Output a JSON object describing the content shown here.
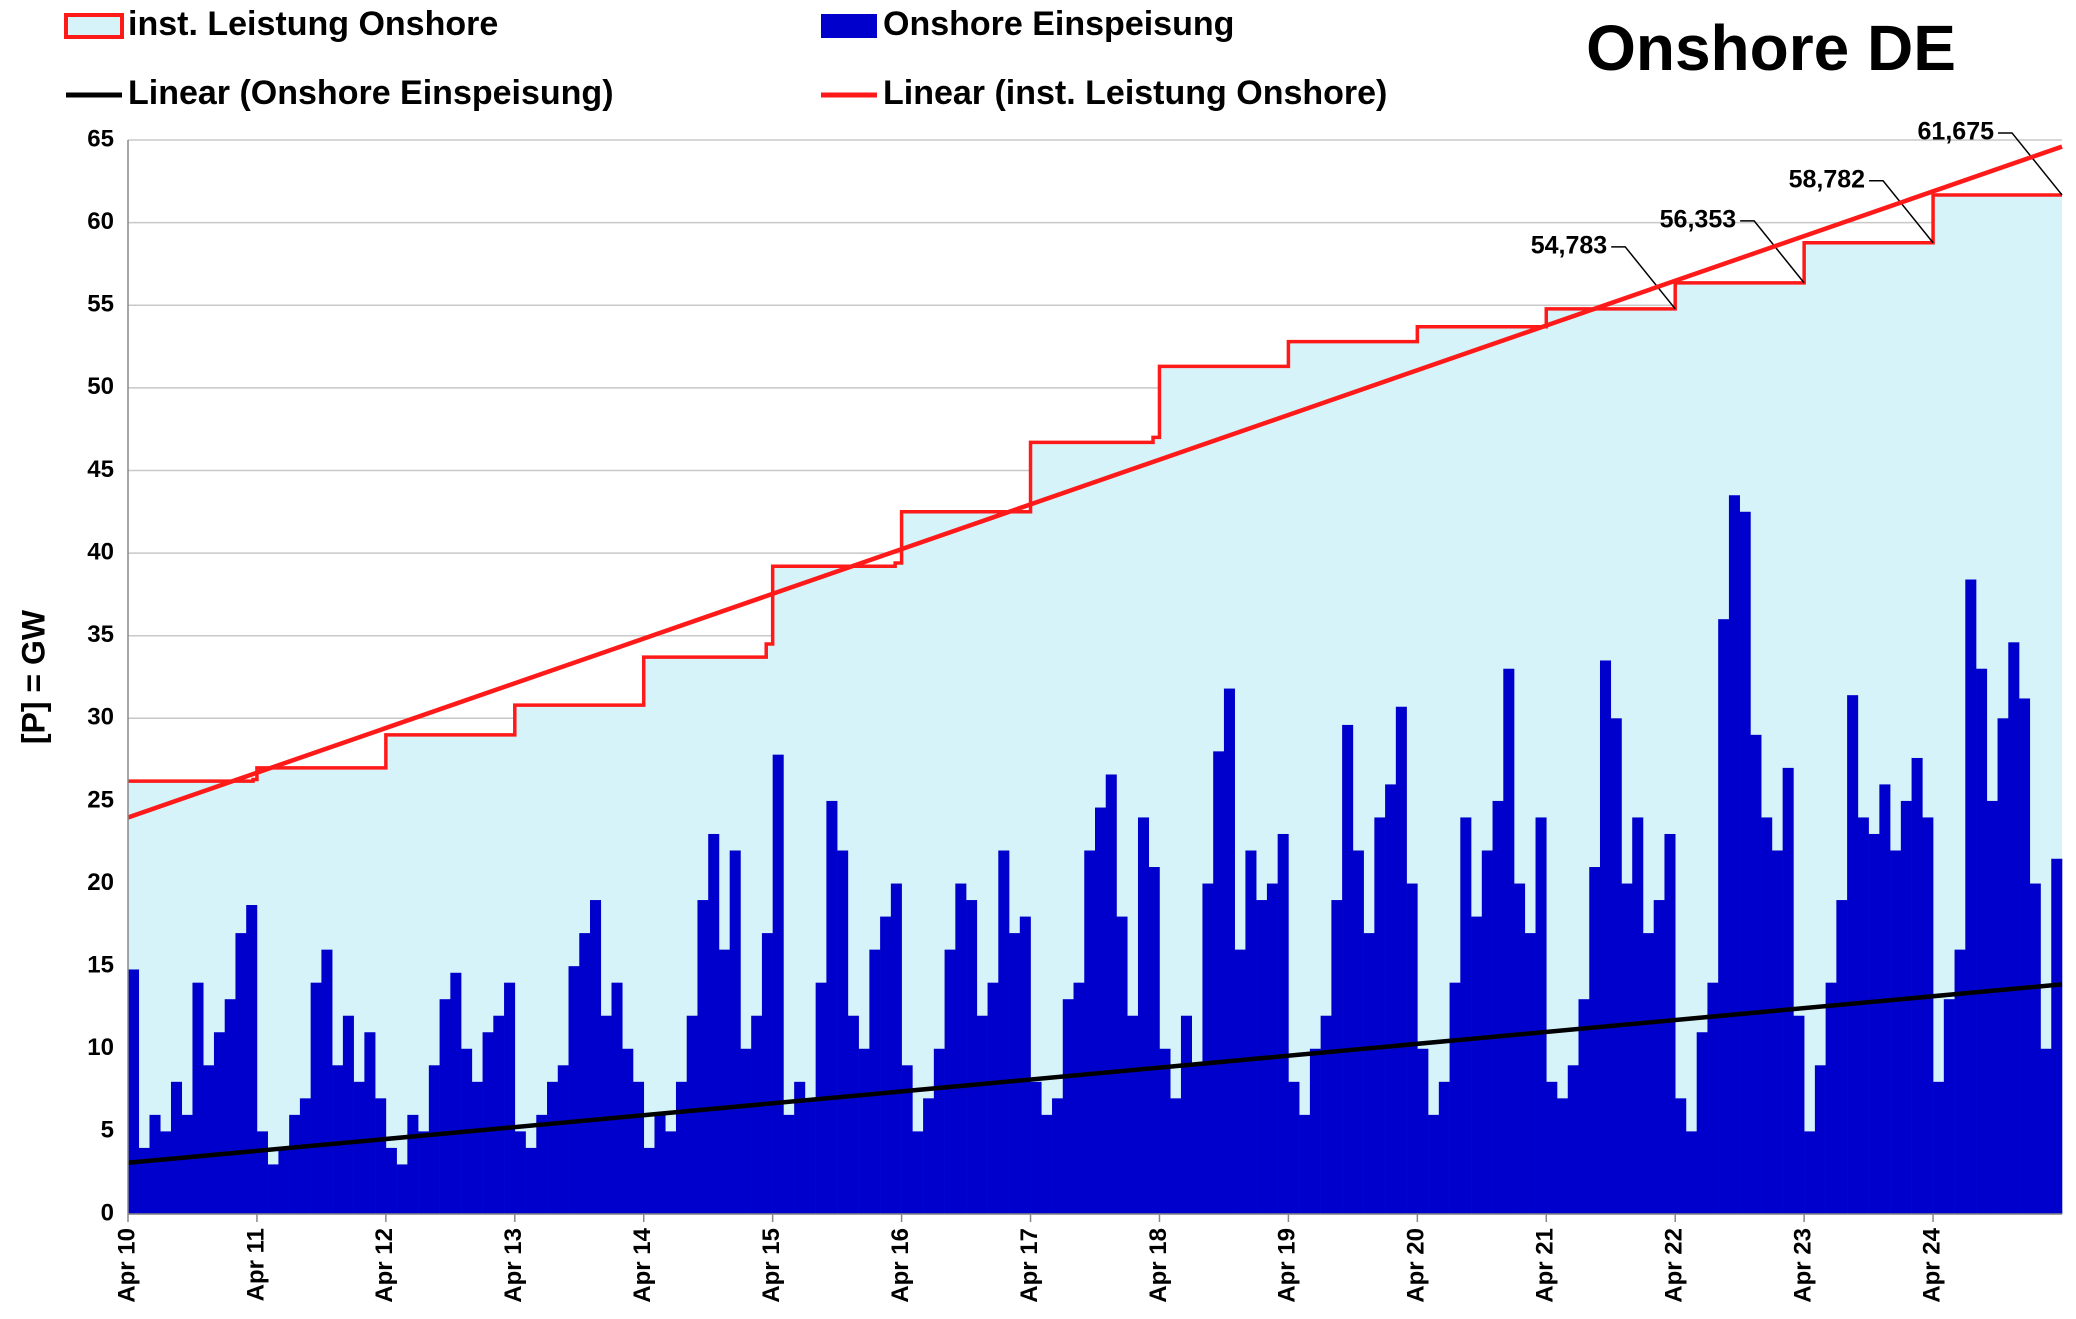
{
  "chart_data": {
    "type": "mixed",
    "title": "Onshore  DE",
    "ylabel": "[P] = GW",
    "xlim": [
      0,
      15
    ],
    "xticks": [
      {
        "value": 0,
        "label": "Apr 10"
      },
      {
        "value": 1,
        "label": "Apr 11"
      },
      {
        "value": 2,
        "label": "Apr 12"
      },
      {
        "value": 3,
        "label": "Apr 13"
      },
      {
        "value": 4,
        "label": "Apr 14"
      },
      {
        "value": 5,
        "label": "Apr 15"
      },
      {
        "value": 6,
        "label": "Apr 16"
      },
      {
        "value": 7,
        "label": "Apr 17"
      },
      {
        "value": 8,
        "label": "Apr 18"
      },
      {
        "value": 9,
        "label": "Apr 19"
      },
      {
        "value": 10,
        "label": "Apr 20"
      },
      {
        "value": 11,
        "label": "Apr 21"
      },
      {
        "value": 12,
        "label": "Apr 22"
      },
      {
        "value": 13,
        "label": "Apr 23"
      },
      {
        "value": 14,
        "label": "Apr 24"
      }
    ],
    "ylim": [
      0,
      65
    ],
    "yticks": [
      0,
      5,
      10,
      15,
      20,
      25,
      30,
      35,
      40,
      45,
      50,
      55,
      60,
      65
    ],
    "grid": true,
    "series": [
      {
        "name": "inst. Leistung Onshore",
        "kind": "step-area",
        "color": "#ff1a1a",
        "fill": "#d6f3fa",
        "x": [
          0,
          0.97,
          1,
          2,
          3,
          4,
          4.95,
          5,
          5.95,
          6,
          7,
          7.95,
          8,
          9,
          10,
          11,
          12,
          13,
          14,
          15
        ],
        "values": [
          26.2,
          26.3,
          27.0,
          29.0,
          30.8,
          33.7,
          34.5,
          39.2,
          39.4,
          42.5,
          46.7,
          47.0,
          51.3,
          52.8,
          53.7,
          54.783,
          56.353,
          58.782,
          61.675,
          61.675
        ],
        "value_labels": [
          null,
          null,
          null,
          null,
          null,
          null,
          null,
          null,
          null,
          null,
          null,
          null,
          null,
          null,
          null,
          "54,783",
          "56,353",
          "58,782",
          null,
          "61,675"
        ]
      },
      {
        "name": "Onshore Einspeisung",
        "kind": "bar",
        "color": "#0000cc",
        "x0": 0,
        "step": 0.0833333,
        "values": [
          14.8,
          4,
          6,
          5,
          8,
          6,
          14,
          9,
          11,
          13,
          17,
          18.7,
          5,
          3,
          4,
          6,
          7,
          14,
          16,
          9,
          12,
          8,
          11,
          7,
          4,
          3,
          6,
          5,
          9,
          13,
          14.6,
          10,
          8,
          11,
          12,
          14,
          5,
          4,
          6,
          8,
          9,
          15,
          17,
          19,
          12,
          14,
          10,
          8,
          4,
          6,
          5,
          8,
          12,
          19,
          23,
          16,
          22,
          10,
          12,
          17,
          27.8,
          6,
          8,
          7,
          14,
          25,
          22,
          12,
          10,
          16,
          18,
          20,
          9,
          5,
          7,
          10,
          16,
          20,
          19,
          12,
          14,
          22,
          17,
          18,
          8,
          6,
          7,
          13,
          14,
          22,
          24.6,
          26.6,
          18,
          12,
          24,
          21,
          10,
          7,
          12,
          9,
          20,
          28,
          31.8,
          16,
          22,
          19,
          20,
          23,
          8,
          6,
          10,
          12,
          19,
          29.6,
          22,
          17,
          24,
          26,
          30.7,
          20,
          10,
          6,
          8,
          14,
          24,
          18,
          22,
          25,
          33,
          20,
          17,
          24,
          8,
          7,
          9,
          13,
          21,
          33.5,
          30,
          20,
          24,
          17,
          19,
          23,
          7,
          5,
          11,
          14,
          36,
          43.5,
          42.5,
          29,
          24,
          22,
          27,
          12,
          5,
          9,
          14,
          19,
          31.4,
          24,
          23,
          26,
          22,
          25,
          27.6,
          24,
          8,
          13,
          16,
          38.4,
          33,
          25,
          30,
          34.6,
          31.2,
          20,
          10,
          21.5
        ]
      },
      {
        "name": "Linear (Onshore Einspeisung)",
        "kind": "line",
        "color": "#000000",
        "x": [
          0,
          15
        ],
        "values": [
          3.1,
          13.9
        ]
      },
      {
        "name": "Linear (inst. Leistung Onshore)",
        "kind": "line",
        "color": "#ff1a1a",
        "x": [
          0,
          15
        ],
        "values": [
          24.0,
          64.6
        ]
      }
    ]
  }
}
